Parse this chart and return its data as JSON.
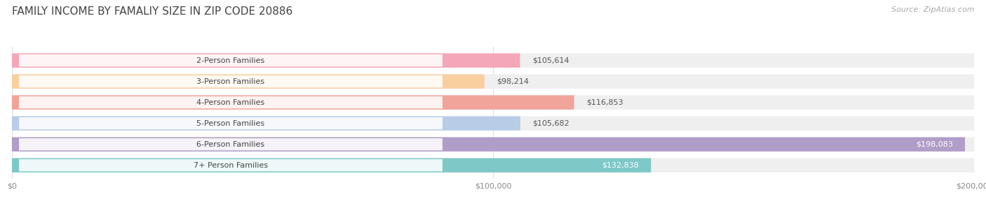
{
  "title": "FAMILY INCOME BY FAMALIY SIZE IN ZIP CODE 20886",
  "source": "Source: ZipAtlas.com",
  "categories": [
    "2-Person Families",
    "3-Person Families",
    "4-Person Families",
    "5-Person Families",
    "6-Person Families",
    "7+ Person Families"
  ],
  "values": [
    105614,
    98214,
    116853,
    105682,
    198083,
    132838
  ],
  "bar_colors": [
    "#f4a7b9",
    "#f9cfa0",
    "#f0a49a",
    "#b8cce8",
    "#b09dc8",
    "#7ec8c8"
  ],
  "label_colors": [
    "#555555",
    "#555555",
    "#555555",
    "#555555",
    "#ffffff",
    "#ffffff"
  ],
  "bar_bg_color": "#efefef",
  "background_color": "#ffffff",
  "xlim": [
    0,
    200000
  ],
  "xticks": [
    0,
    100000,
    200000
  ],
  "xtick_labels": [
    "$0",
    "$100,000",
    "$200,000"
  ],
  "title_fontsize": 11,
  "source_fontsize": 8,
  "label_fontsize": 8,
  "category_fontsize": 8,
  "value_labels": [
    "$105,614",
    "$98,214",
    "$116,853",
    "$105,682",
    "$198,083",
    "$132,838"
  ]
}
